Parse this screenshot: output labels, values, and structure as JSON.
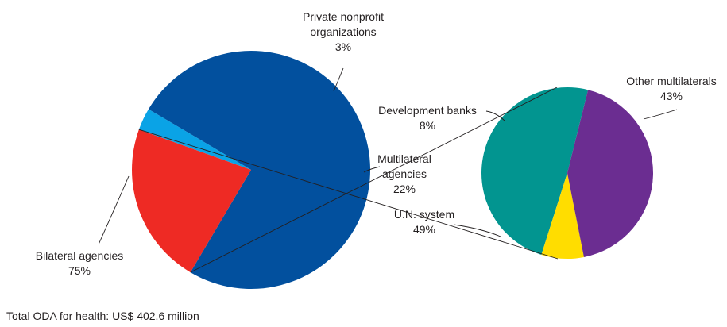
{
  "chart_data": [
    {
      "type": "pie",
      "slices": [
        {
          "label_lines": [
            "Bilateral agencies",
            "75%"
          ],
          "value": 75,
          "color": "#02509e"
        },
        {
          "label_lines": [
            "Private nonprofit",
            "organizations",
            "3%"
          ],
          "value": 3,
          "color": "#0aa3e6"
        },
        {
          "label_lines": [
            "Multilateral",
            "agencies",
            "22%"
          ],
          "value": 22,
          "color": "#ee2a24"
        }
      ]
    },
    {
      "type": "pie",
      "exploded_from": "Multilateral agencies",
      "slices": [
        {
          "label_lines": [
            "Other multilaterals",
            "43%"
          ],
          "value": 43,
          "color": "#6b2d91"
        },
        {
          "label_lines": [
            "U.N. system",
            "49%"
          ],
          "value": 49,
          "color": "#029590"
        },
        {
          "label_lines": [
            "Development banks",
            "8%"
          ],
          "value": 8,
          "color": "#ffdd00"
        }
      ]
    }
  ],
  "footnote": "Total ODA for health: US$ 402.6 million"
}
